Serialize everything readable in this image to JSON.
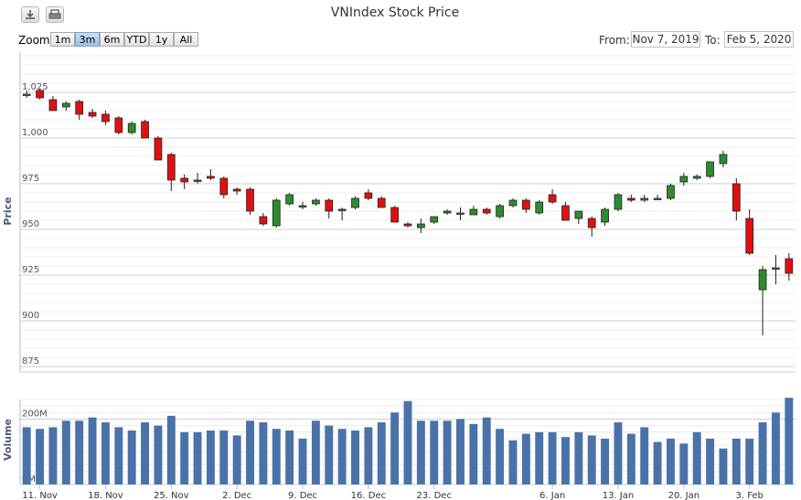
{
  "title": "VNIndex Stock Price",
  "toolbar": {
    "download_icon": "download-icon",
    "print_icon": "print-icon"
  },
  "zoom": {
    "label": "Zoom",
    "buttons": [
      "1m",
      "3m",
      "6m",
      "YTD",
      "1y",
      "All"
    ],
    "active": "3m"
  },
  "range": {
    "from_label": "From:",
    "from_value": "Nov 7, 2019",
    "to_label": "To:",
    "to_value": "Feb 5, 2020"
  },
  "colors": {
    "up": "#2e8b2e",
    "down": "#e01010",
    "volume": "#4a72a8",
    "grid": "#d8d8d8"
  },
  "chart_data": {
    "type": "candlestick",
    "price": {
      "ylabel": "Price",
      "ylim": [
        872,
        1047
      ],
      "yticks": [
        "1,025",
        "1,000",
        "975",
        "950",
        "925",
        "900",
        "875"
      ],
      "ytick_values": [
        1025,
        1000,
        975,
        950,
        925,
        900,
        875
      ],
      "ohlc": [
        [
          1024,
          1026,
          1022,
          1024
        ],
        [
          1026,
          1027,
          1021,
          1022
        ],
        [
          1021,
          1023,
          1015,
          1015
        ],
        [
          1017,
          1020,
          1015,
          1019
        ],
        [
          1020,
          1021,
          1010,
          1013
        ],
        [
          1014,
          1016,
          1011,
          1012
        ],
        [
          1013,
          1015,
          1007,
          1009
        ],
        [
          1011,
          1012,
          1002,
          1003
        ],
        [
          1003,
          1009,
          1002,
          1008
        ],
        [
          1009,
          1010,
          1000,
          1000
        ],
        [
          1000,
          1001,
          988,
          988
        ],
        [
          991,
          992,
          971,
          977
        ],
        [
          978,
          980,
          972,
          976
        ],
        [
          977,
          981,
          975,
          977
        ],
        [
          979,
          983,
          977,
          978
        ],
        [
          978,
          979,
          967,
          969
        ],
        [
          972,
          973,
          969,
          971
        ],
        [
          972,
          973,
          958,
          960
        ],
        [
          957,
          959,
          952,
          953
        ],
        [
          952,
          967,
          951,
          966
        ],
        [
          964,
          970,
          963,
          969
        ],
        [
          963,
          965,
          961,
          963
        ],
        [
          964,
          967,
          963,
          966
        ],
        [
          966,
          967,
          956,
          960
        ],
        [
          961,
          962,
          955,
          961
        ],
        [
          962,
          968,
          961,
          967
        ],
        [
          970,
          972,
          966,
          967
        ],
        [
          967,
          968,
          962,
          962
        ],
        [
          962,
          963,
          954,
          954
        ],
        [
          953,
          954,
          951,
          952
        ],
        [
          951,
          956,
          948,
          953
        ],
        [
          954,
          957,
          953,
          957
        ],
        [
          959,
          961,
          958,
          960
        ],
        [
          959,
          962,
          955,
          959
        ],
        [
          958,
          963,
          958,
          961
        ],
        [
          961,
          962,
          958,
          959
        ],
        [
          957,
          964,
          956,
          963
        ],
        [
          963,
          967,
          962,
          966
        ],
        [
          966,
          967,
          959,
          961
        ],
        [
          959,
          966,
          958,
          965
        ],
        [
          969,
          972,
          964,
          965
        ],
        [
          963,
          965,
          955,
          955
        ],
        [
          956,
          960,
          953,
          960
        ],
        [
          956,
          957,
          946,
          951
        ],
        [
          954,
          962,
          952,
          961
        ],
        [
          961,
          970,
          960,
          969
        ],
        [
          967,
          969,
          965,
          966
        ],
        [
          966,
          969,
          965,
          967
        ],
        [
          967,
          969,
          966,
          967
        ],
        [
          967,
          975,
          966,
          974
        ],
        [
          976,
          981,
          974,
          979
        ],
        [
          978,
          980,
          977,
          979
        ],
        [
          979,
          987,
          978,
          987
        ],
        [
          986,
          993,
          984,
          991
        ],
        [
          975,
          978,
          955,
          960
        ],
        [
          956,
          961,
          936,
          937
        ],
        [
          917,
          930,
          892,
          928
        ],
        [
          929,
          936,
          920,
          929
        ],
        [
          934,
          937,
          922,
          926
        ]
      ],
      "x_index": [
        0,
        1,
        2,
        3,
        4,
        5,
        6,
        7,
        8,
        9,
        10,
        11,
        12,
        13,
        14,
        15,
        16,
        17,
        18,
        19,
        20,
        21,
        22,
        23,
        24,
        25,
        26,
        27,
        28,
        29,
        30,
        31,
        32,
        33,
        34,
        35,
        36,
        37,
        38,
        39,
        40,
        41,
        42,
        43,
        44,
        45,
        46,
        47,
        48,
        49,
        50,
        51,
        52,
        53,
        54,
        55,
        56,
        57,
        58
      ]
    },
    "volume": {
      "ylabel": "Volume",
      "ylim": [
        0,
        260
      ],
      "ytick_labels": [
        "200M",
        "0M"
      ],
      "ytick_values": [
        200,
        0
      ],
      "values": [
        175,
        170,
        175,
        195,
        195,
        205,
        190,
        175,
        165,
        190,
        180,
        210,
        160,
        160,
        165,
        165,
        150,
        195,
        190,
        170,
        165,
        140,
        195,
        180,
        170,
        165,
        175,
        190,
        220,
        255,
        195,
        195,
        195,
        200,
        185,
        205,
        170,
        135,
        155,
        160,
        160,
        145,
        160,
        150,
        140,
        190,
        155,
        175,
        130,
        140,
        125,
        160,
        140,
        110,
        140,
        140,
        190,
        220,
        265
      ]
    },
    "x_ticks": [
      {
        "label": "11. Nov",
        "index": 1
      },
      {
        "label": "18. Nov",
        "index": 6
      },
      {
        "label": "25. Nov",
        "index": 11
      },
      {
        "label": "2. Dec",
        "index": 16
      },
      {
        "label": "9. Dec",
        "index": 21
      },
      {
        "label": "16. Dec",
        "index": 26
      },
      {
        "label": "23. Dec",
        "index": 31
      },
      {
        "label": "6. Jan",
        "index": 40
      },
      {
        "label": "13. Jan",
        "index": 45
      },
      {
        "label": "20. Jan",
        "index": 50
      },
      {
        "label": "3. Feb",
        "index": 55
      }
    ]
  }
}
